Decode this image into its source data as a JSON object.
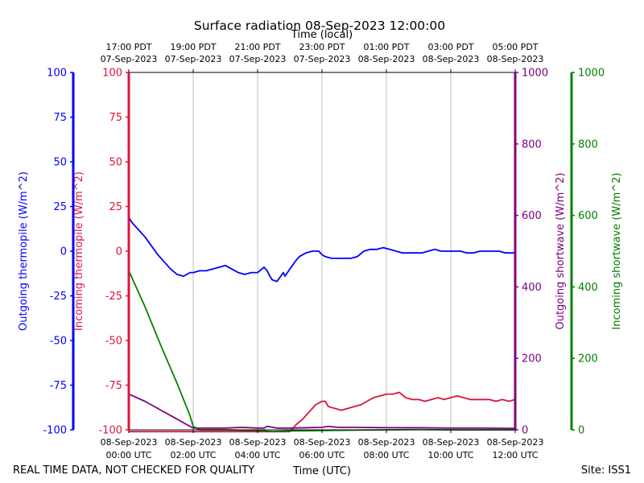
{
  "chart_data": {
    "type": "line",
    "title": "Surface radiation 08-Sep-2023 12:00:00",
    "top_axis_label": "Time (local)",
    "xlabel": "Time (UTC)",
    "footer_left": "REAL TIME DATA, NOT CHECKED FOR QUALITY",
    "footer_right": "Site: ISS1",
    "x_range_hours": [
      0,
      12
    ],
    "grid_x": true,
    "x_ticks_bottom": [
      {
        "hour": 0,
        "line1": "08-Sep-2023",
        "line2": "00:00 UTC"
      },
      {
        "hour": 2,
        "line1": "08-Sep-2023",
        "line2": "02:00 UTC"
      },
      {
        "hour": 4,
        "line1": "08-Sep-2023",
        "line2": "04:00 UTC"
      },
      {
        "hour": 6,
        "line1": "08-Sep-2023",
        "line2": "06:00 UTC"
      },
      {
        "hour": 8,
        "line1": "08-Sep-2023",
        "line2": "08:00 UTC"
      },
      {
        "hour": 10,
        "line1": "08-Sep-2023",
        "line2": "10:00 UTC"
      },
      {
        "hour": 12,
        "line1": "08-Sep-2023",
        "line2": "12:00 UTC"
      }
    ],
    "x_ticks_top": [
      {
        "hour": 0,
        "line1": "17:00 PDT",
        "line2": "07-Sep-2023"
      },
      {
        "hour": 2,
        "line1": "19:00 PDT",
        "line2": "07-Sep-2023"
      },
      {
        "hour": 4,
        "line1": "21:00 PDT",
        "line2": "07-Sep-2023"
      },
      {
        "hour": 6,
        "line1": "23:00 PDT",
        "line2": "07-Sep-2023"
      },
      {
        "hour": 8,
        "line1": "01:00 PDT",
        "line2": "08-Sep-2023"
      },
      {
        "hour": 10,
        "line1": "03:00 PDT",
        "line2": "08-Sep-2023"
      },
      {
        "hour": 12,
        "line1": "05:00 PDT",
        "line2": "08-Sep-2023"
      }
    ],
    "axes": [
      {
        "id": "outgoing_thermopile",
        "label": "Outgoing thermopile (W/m^2)",
        "color": "#0000ff",
        "range": [
          -100,
          100
        ],
        "ticks": [
          -100,
          -75,
          -50,
          -25,
          0,
          25,
          50,
          75,
          100
        ]
      },
      {
        "id": "incoming_thermopile",
        "label": "Incoming thermopile (W/m^2)",
        "color": "#dc143c",
        "range": [
          -100,
          100
        ],
        "ticks": [
          -100,
          -75,
          -50,
          -25,
          0,
          25,
          50,
          75,
          100
        ]
      },
      {
        "id": "outgoing_shortwave",
        "label": "Outgoing shortwave (W/m^2)",
        "color": "#800080",
        "range": [
          0,
          1000
        ],
        "ticks": [
          0,
          200,
          400,
          600,
          800,
          1000
        ]
      },
      {
        "id": "incoming_shortwave",
        "label": "Incoming shortwave (W/m^2)",
        "color": "#008000",
        "range": [
          0,
          1000
        ],
        "ticks": [
          0,
          200,
          400,
          600,
          800,
          1000
        ]
      }
    ],
    "series": [
      {
        "name": "Outgoing thermopile",
        "axis": "outgoing_thermopile",
        "color": "#0000ff",
        "x": [
          0,
          0.1,
          0.3,
          0.5,
          0.7,
          0.9,
          1.1,
          1.3,
          1.5,
          1.7,
          1.9,
          2.0,
          2.2,
          2.4,
          2.6,
          2.8,
          3.0,
          3.2,
          3.4,
          3.6,
          3.8,
          4.0,
          4.2,
          4.3,
          4.35,
          4.45,
          4.6,
          4.8,
          4.85,
          5.0,
          5.2,
          5.3,
          5.5,
          5.7,
          5.9,
          6.0,
          6.1,
          6.3,
          6.5,
          6.7,
          6.9,
          7.1,
          7.3,
          7.5,
          7.7,
          7.9,
          8.1,
          8.3,
          8.5,
          8.7,
          8.9,
          9.1,
          9.3,
          9.5,
          9.7,
          9.9,
          10.1,
          10.3,
          10.5,
          10.7,
          10.9,
          11.1,
          11.3,
          11.5,
          11.7,
          11.9,
          12.0
        ],
        "values": [
          19,
          16,
          12,
          8,
          3,
          -2,
          -6,
          -10,
          -13,
          -14,
          -12,
          -12,
          -11,
          -11,
          -10,
          -9,
          -8,
          -10,
          -12,
          -13,
          -12,
          -12,
          -9,
          -11,
          -13,
          -16,
          -17,
          -12,
          -14,
          -10,
          -5,
          -3,
          -1,
          0,
          0,
          -2,
          -3,
          -4,
          -4,
          -4,
          -4,
          -3,
          0,
          1,
          1,
          2,
          1,
          0,
          -1,
          -1,
          -1,
          -1,
          0,
          1,
          0,
          0,
          0,
          0,
          -1,
          -1,
          0,
          0,
          0,
          0,
          -1,
          -1,
          -1
        ]
      },
      {
        "name": "Incoming thermopile",
        "axis": "incoming_thermopile",
        "color": "#dc143c",
        "x": [
          0,
          0.5,
          1.0,
          1.5,
          2.0,
          3.0,
          4.0,
          4.3,
          4.5,
          4.8,
          5.0,
          5.2,
          5.4,
          5.6,
          5.8,
          6.0,
          6.1,
          6.2,
          6.4,
          6.6,
          6.8,
          7.0,
          7.2,
          7.4,
          7.6,
          7.8,
          8.0,
          8.2,
          8.4,
          8.6,
          8.8,
          9.0,
          9.2,
          9.4,
          9.6,
          9.8,
          10.0,
          10.2,
          10.4,
          10.6,
          10.8,
          11.0,
          11.2,
          11.4,
          11.6,
          11.8,
          12.0
        ],
        "values": [
          -101,
          -101,
          -101,
          -101,
          -101,
          -101,
          -101,
          -101,
          -101,
          -101,
          -101,
          -97,
          -94,
          -90,
          -86,
          -84,
          -84,
          -87,
          -88,
          -89,
          -88,
          -87,
          -86,
          -84,
          -82,
          -81,
          -80,
          -80,
          -79,
          -82,
          -83,
          -83,
          -84,
          -83,
          -82,
          -83,
          -82,
          -81,
          -82,
          -83,
          -83,
          -83,
          -83,
          -84,
          -83,
          -84,
          -83
        ]
      },
      {
        "name": "Outgoing shortwave",
        "axis": "outgoing_shortwave",
        "color": "#800080",
        "x": [
          0,
          0.5,
          1.0,
          1.5,
          1.9,
          2.0,
          3.0,
          3.5,
          4.0,
          4.2,
          4.3,
          4.6,
          5.0,
          6.0,
          6.2,
          6.5,
          7.0,
          8.0,
          9.0,
          10.0,
          11.0,
          12.0
        ],
        "values": [
          100,
          80,
          55,
          30,
          10,
          5,
          5,
          7,
          5,
          5,
          10,
          5,
          5,
          7,
          10,
          7,
          7,
          6,
          6,
          5,
          5,
          4
        ]
      },
      {
        "name": "Incoming shortwave",
        "axis": "incoming_shortwave",
        "color": "#008000",
        "x": [
          0,
          0.5,
          1.0,
          1.5,
          1.9,
          2.0,
          2.2,
          3.0,
          4.0,
          4.5,
          5.0,
          6.0,
          7.0,
          8.0,
          9.0,
          10.0,
          11.0,
          12.0
        ],
        "values": [
          445,
          345,
          235,
          130,
          40,
          10,
          0,
          0,
          -2,
          -5,
          -3,
          -2,
          -1,
          0,
          1,
          0,
          0,
          0
        ]
      }
    ]
  }
}
